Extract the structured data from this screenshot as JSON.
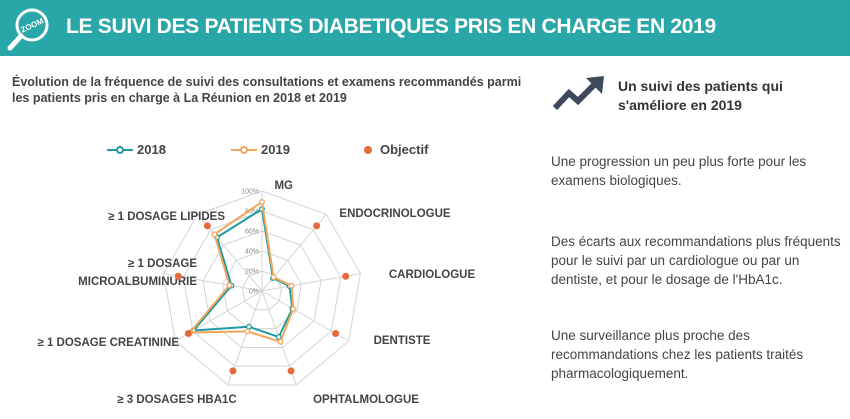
{
  "header": {
    "badge_text": "ZOOM",
    "title": "LE SUIVI DES PATIENTS DIABETIQUES PRIS EN CHARGE EN 2019",
    "colors": {
      "background": "#29a6a8",
      "text": "#ffffff"
    }
  },
  "chart_caption": "Évolution de la fréquence de suivi des consultations et examens recommandés parmi les patients pris en charge à La Réunion en 2018 et 2019",
  "chart_data": {
    "type": "radar",
    "axes": [
      "MG",
      "ENDOCRINOLOGUE",
      "CARDIOLOGUE",
      "DENTISTE",
      "OPHTALMOLOGUE",
      "≥ 3 DOSAGES HBA1C",
      "≥ 1 DOSAGE CREATININE",
      "≥ 1 DOSAGE MICROALBUMINURIE",
      "≥ 1 DOSAGE LIPIDES"
    ],
    "ticks": [
      "0%",
      "20%",
      "40%",
      "60%",
      "80%",
      "100%"
    ],
    "range": [
      0,
      100
    ],
    "series": [
      {
        "name": "2018",
        "color": "#1f9aa3",
        "values": [
          82,
          17,
          28,
          35,
          49,
          38,
          79,
          31,
          70
        ]
      },
      {
        "name": "2019",
        "color": "#f2a65a",
        "values": [
          89,
          18,
          30,
          36,
          54,
          43,
          83,
          33,
          74
        ]
      },
      {
        "name": "Objectif",
        "color": "#e76a3c",
        "style": "markers",
        "values": [
          null,
          85,
          85,
          85,
          85,
          85,
          85,
          85,
          85
        ]
      }
    ],
    "grid": true,
    "legend_position": "top"
  },
  "side": {
    "title": "Un suivi des patients qui s'améliore en 2019",
    "icon": "trending-up-icon",
    "paragraphs": [
      "Une progression un peu plus forte pour les examens biologiques.",
      "Des écarts aux recommandations plus fréquents pour le suivi par un cardiologue ou par un dentiste, et pour le dosage de l'HbA1c.",
      "Une surveillance plus proche des recommandations chez les patients traités pharmacologiquement."
    ]
  }
}
